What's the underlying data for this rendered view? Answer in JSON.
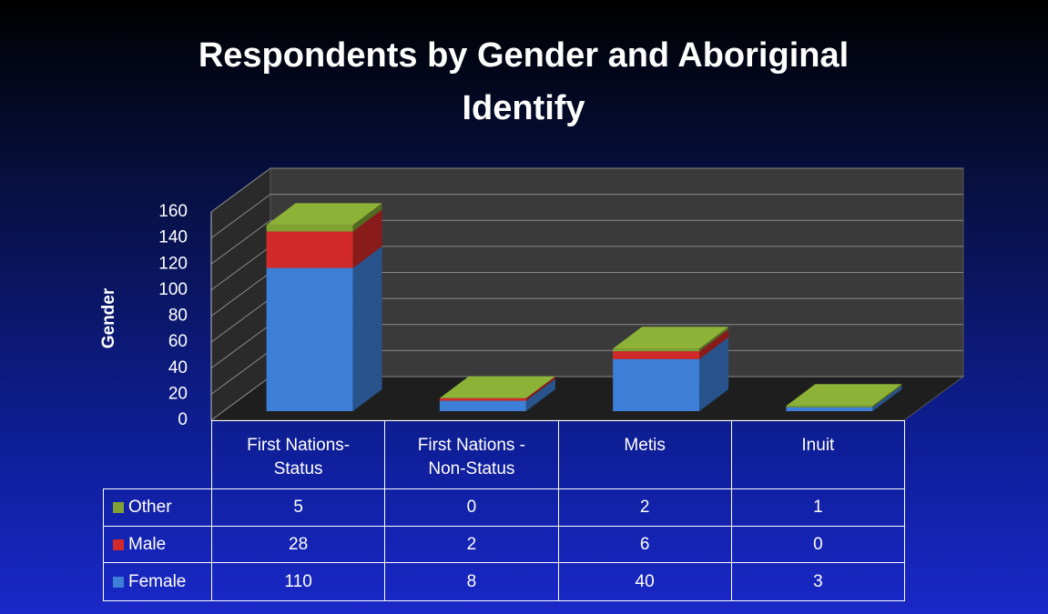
{
  "chart_data": {
    "type": "bar3d-stacked",
    "title": "Respondents by Gender and Aboriginal Identify",
    "ylabel": "Gender",
    "categories": [
      "First Nations-Status",
      "First Nations - Non-Status",
      "Metis",
      "Inuit"
    ],
    "series": [
      {
        "name": "Female",
        "color": "#3d7fd6",
        "values": [
          110,
          8,
          40,
          3
        ]
      },
      {
        "name": "Male",
        "color": "#d22a2a",
        "values": [
          28,
          2,
          6,
          0
        ]
      },
      {
        "name": "Other",
        "color": "#7fa232",
        "values": [
          5,
          0,
          2,
          1
        ]
      }
    ],
    "ylim": [
      0,
      160
    ],
    "yticks": [
      0,
      20,
      40,
      60,
      80,
      100,
      120,
      140,
      160
    ],
    "grid": true,
    "data_table": true
  }
}
